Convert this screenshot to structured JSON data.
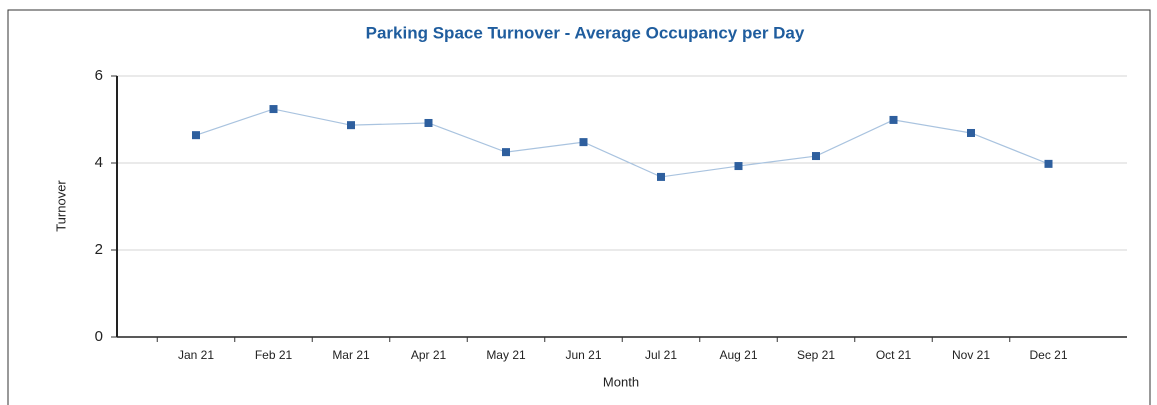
{
  "chart_data": {
    "type": "line",
    "title": "Parking Space Turnover - Average Occupancy per Day",
    "x_label": "Month",
    "y_label": "Turnover",
    "categories": [
      "Jan 21",
      "Feb 21",
      "Mar 21",
      "Apr 21",
      "May 21",
      "Jun 21",
      "Jul 21",
      "Aug 21",
      "Sep 21",
      "Oct 21",
      "Nov 21",
      "Dec 21"
    ],
    "series": [
      {
        "name": "Turnover",
        "color": "#2e5f9e",
        "line_color": "#a9c3df",
        "values": [
          4.64,
          5.24,
          4.87,
          4.92,
          4.25,
          4.48,
          3.68,
          3.93,
          4.16,
          4.99,
          4.69,
          3.98
        ]
      }
    ],
    "ylim": [
      0,
      6
    ],
    "yticks": [
      0,
      2,
      4,
      6
    ],
    "grid": true
  }
}
